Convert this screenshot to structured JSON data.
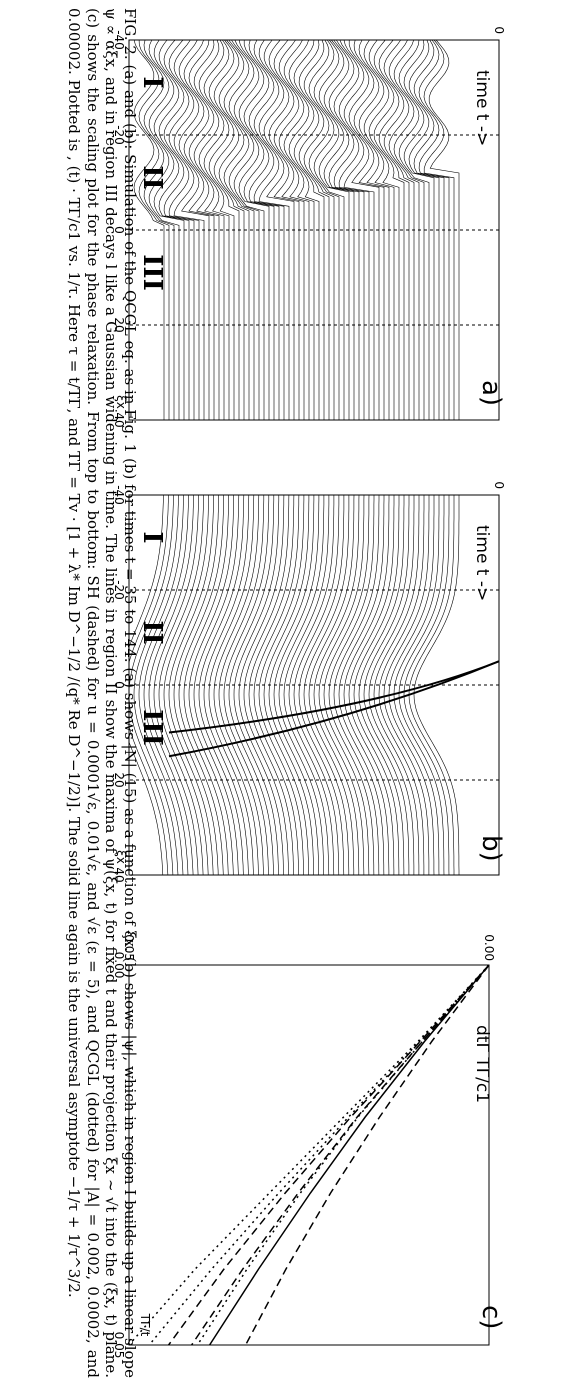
{
  "caption": "FIG. 2. (a) and (b): Simulation of the QCGL eq. as in Fig. 1 (b) for times t = 35 to 144. (a) shows |N| (15) as a function of ξx. (b) shows |ψ|, which in region I builds up a linear slope ψ ∝ αξx, and in region III decays l like a Gaussian widening in time. The lines in region II show the maxima of ψ(ξx, t) for fixed t and their projection ξx ∼ √t into the (ξx, t) plane. (c) shows the scaling plot for the phase relaxation. From top to bottom: SH (dashed) for u = 0.0001√ε, 0.01√ε, and √ε (ε = 5), and QCGL (dotted) for |A| = 0.002, 0.0002, and 0.00002. Plotted is , (t) · TΓ/c1 vs. 1/τ. Here τ = t/TΓ, and TΓ = Tv · [1 + λ* Im D^−1/2 /(q* Re D^−1/2)]. The solid line again is the universal asymptote −1/τ + 1/τ^3/2.",
  "panels": [
    {
      "label": "a)",
      "ylabel": "time t ->",
      "xlabel": "ξx",
      "xticks": [
        "-40",
        "-20",
        "0",
        "20",
        "40"
      ],
      "yticks": [
        "0"
      ],
      "regions": [
        "I",
        "II",
        "III"
      ]
    },
    {
      "label": "b)",
      "ylabel": "time t ->",
      "xlabel": "ξx",
      "xticks": [
        "-40",
        "-20",
        "0",
        "20",
        "40"
      ],
      "yticks": [
        "0"
      ],
      "regions": [
        "I",
        "II",
        "III"
      ]
    },
    {
      "label": "c)",
      "ylabel": "dtΓ TΓ/c1",
      "xlabel": "TΓ/t",
      "xticks": [
        "0.00",
        "0.05"
      ],
      "yticks": [
        "0.00",
        "-0.05"
      ]
    }
  ],
  "chart_data": {
    "type": "line",
    "xlabel": "TΓ/t",
    "ylabel": "dtΓ TΓ/c1",
    "xlim": [
      0,
      0.05
    ],
    "ylim": [
      -0.05,
      0.0
    ],
    "series": [
      {
        "style": "solid",
        "x": [
          0.0,
          0.01,
          0.02,
          0.03,
          0.04,
          0.05
        ],
        "y": [
          0.0,
          -0.0089,
          -0.0172,
          -0.0248,
          -0.032,
          -0.0388
        ]
      },
      {
        "style": "dashed",
        "x": [
          0.0,
          0.01,
          0.02,
          0.03,
          0.04,
          0.05
        ],
        "y": [
          0.0,
          -0.0079,
          -0.0152,
          -0.022,
          -0.0282,
          -0.0338
        ]
      },
      {
        "style": "dashed",
        "x": [
          0.0,
          0.01,
          0.02,
          0.03,
          0.04,
          0.05
        ],
        "y": [
          0.0,
          -0.0092,
          -0.0183,
          -0.0265,
          -0.0342,
          -0.0413
        ]
      },
      {
        "style": "dashed",
        "x": [
          0.0,
          0.01,
          0.02,
          0.03,
          0.04,
          0.05
        ],
        "y": [
          0.0,
          -0.0095,
          -0.0192,
          -0.0283,
          -0.0368,
          -0.0445
        ]
      },
      {
        "style": "dotted",
        "x": [
          0.0,
          0.01,
          0.02,
          0.03,
          0.04,
          0.05
        ],
        "y": [
          0.0,
          -0.0092,
          -0.0182,
          -0.0262,
          -0.0336,
          -0.0405
        ]
      },
      {
        "style": "dotted",
        "x": [
          0.0,
          0.01,
          0.02,
          0.03,
          0.04,
          0.05
        ],
        "y": [
          0.0,
          -0.0096,
          -0.0195,
          -0.0292,
          -0.0385,
          -0.0472
        ]
      },
      {
        "style": "dotted",
        "x": [
          0.0,
          0.01,
          0.02,
          0.03,
          0.04,
          0.05
        ],
        "y": [
          0.0,
          -0.0098,
          -0.0202,
          -0.0305,
          -0.0408,
          -0.05
        ]
      }
    ]
  }
}
